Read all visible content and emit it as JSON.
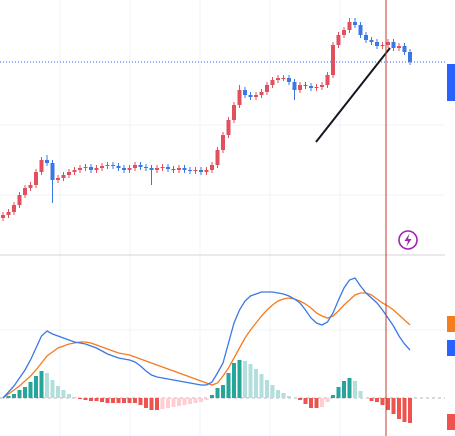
{
  "chart_data": [
    {
      "type": "candlestick",
      "open": [
        37,
        40,
        43,
        50,
        60,
        67,
        70,
        83,
        95,
        92,
        75,
        77,
        80,
        83,
        85,
        87,
        88,
        85,
        87,
        89,
        90,
        89,
        87,
        85,
        87,
        90,
        88,
        87,
        85,
        87,
        88,
        86,
        85,
        87,
        85,
        84,
        85,
        83,
        85,
        90,
        105,
        120,
        135,
        150,
        165,
        160,
        158,
        160,
        163,
        170,
        175,
        177,
        177,
        173,
        165,
        170,
        169,
        167,
        168,
        170,
        180,
        210,
        220,
        225,
        233,
        230,
        220,
        215,
        213,
        209,
        210,
        213,
        207,
        209,
        203
      ],
      "high": [
        43,
        46,
        53,
        63,
        70,
        73,
        86,
        98,
        100,
        95,
        80,
        83,
        86,
        88,
        90,
        91,
        91,
        90,
        92,
        93,
        93,
        92,
        90,
        90,
        93,
        93,
        91,
        90,
        90,
        91,
        91,
        89,
        90,
        90,
        88,
        88,
        88,
        88,
        93,
        108,
        123,
        138,
        153,
        170,
        168,
        163,
        163,
        166,
        173,
        178,
        180,
        180,
        180,
        176,
        173,
        173,
        172,
        171,
        173,
        183,
        213,
        223,
        228,
        237,
        237,
        233,
        223,
        218,
        216,
        213,
        216,
        216,
        212,
        212,
        206
      ],
      "low": [
        34,
        37,
        40,
        47,
        57,
        64,
        67,
        80,
        89,
        52,
        72,
        74,
        77,
        80,
        82,
        84,
        82,
        82,
        84,
        86,
        86,
        84,
        82,
        82,
        84,
        85,
        84,
        70,
        82,
        84,
        83,
        82,
        82,
        82,
        81,
        81,
        80,
        80,
        82,
        87,
        102,
        117,
        132,
        147,
        157,
        155,
        155,
        157,
        160,
        167,
        172,
        174,
        170,
        155,
        162,
        166,
        164,
        164,
        165,
        167,
        177,
        207,
        217,
        222,
        227,
        217,
        212,
        210,
        206,
        206,
        207,
        204,
        204,
        200,
        190
      ],
      "close": [
        40,
        43,
        50,
        60,
        67,
        70,
        83,
        95,
        92,
        75,
        77,
        80,
        83,
        85,
        87,
        88,
        85,
        87,
        89,
        90,
        89,
        87,
        85,
        87,
        90,
        88,
        87,
        85,
        87,
        88,
        86,
        85,
        87,
        85,
        84,
        85,
        83,
        85,
        90,
        105,
        120,
        135,
        150,
        165,
        160,
        158,
        160,
        163,
        170,
        175,
        177,
        177,
        173,
        165,
        170,
        169,
        167,
        168,
        170,
        180,
        210,
        220,
        225,
        233,
        230,
        220,
        215,
        213,
        209,
        210,
        213,
        207,
        209,
        203,
        193
      ],
      "up_color": "#e0505f",
      "down_color": "#3b78e7",
      "ylim": [
        0,
        255
      ]
    },
    {
      "type": "macd",
      "dif": [
        0,
        6,
        12,
        20,
        28,
        38,
        50,
        62,
        67,
        64,
        62,
        60,
        58,
        56,
        55,
        54,
        52,
        50,
        47,
        44,
        42,
        40,
        39,
        38,
        36,
        32,
        27,
        23,
        21,
        20,
        19,
        18,
        17,
        16,
        15,
        14,
        13,
        13,
        16,
        25,
        35,
        55,
        75,
        88,
        97,
        102,
        104,
        106,
        106,
        106,
        105,
        104,
        102,
        99,
        95,
        88,
        80,
        75,
        73,
        76,
        85,
        98,
        110,
        118,
        120,
        112,
        105,
        100,
        95,
        88,
        80,
        72,
        62,
        54,
        48
      ],
      "dea": [
        0,
        4,
        8,
        12,
        17,
        22,
        28,
        35,
        42,
        46,
        50,
        52,
        54,
        55,
        56,
        56,
        55,
        53,
        51,
        49,
        47,
        45,
        44,
        43,
        41,
        39,
        37,
        35,
        33,
        31,
        29,
        27,
        25,
        23,
        21,
        19,
        17,
        15,
        13,
        15,
        22,
        30,
        40,
        50,
        60,
        68,
        75,
        82,
        88,
        93,
        97,
        99,
        100,
        99,
        97,
        94,
        90,
        85,
        82,
        80,
        82,
        87,
        93,
        98,
        103,
        105,
        105,
        103,
        99,
        95,
        92,
        88,
        83,
        78,
        73
      ],
      "hist": [
        0,
        2,
        4,
        8,
        11,
        16,
        22,
        27,
        25,
        18,
        12,
        8,
        4,
        1,
        -1,
        -2,
        -3,
        -3,
        -4,
        -5,
        -5,
        -5,
        -5,
        -5,
        -5,
        -7,
        -10,
        -12,
        -12,
        -11,
        -10,
        -9,
        -8,
        -7,
        -6,
        -5,
        -4,
        -2,
        3,
        10,
        13,
        25,
        35,
        38,
        37,
        34,
        29,
        24,
        18,
        13,
        8,
        5,
        2,
        0,
        -2,
        -6,
        -10,
        -10,
        -9,
        -4,
        3,
        11,
        17,
        20,
        17,
        7,
        0,
        -3,
        -4,
        -7,
        -12,
        -16,
        -21,
        -24,
        -25
      ],
      "dif_color": "#3b78e7",
      "dea_color": "#f57c1f",
      "hist_colors": {
        "up_grow": "#26a69a",
        "up_fall": "#b2dfdb",
        "down_grow": "#ef5350",
        "down_fall": "#ffcdd2"
      },
      "ylim": [
        -38,
        143
      ]
    }
  ]
}
